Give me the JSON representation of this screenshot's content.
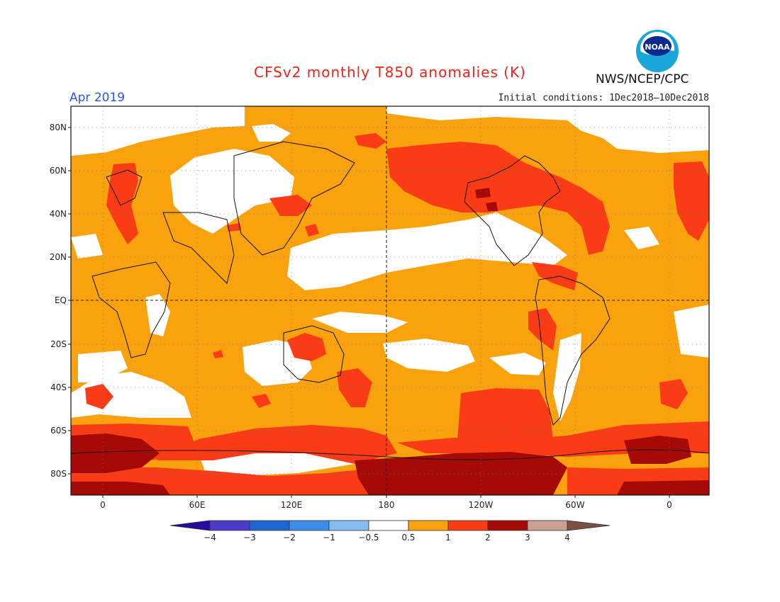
{
  "title": "CFSv2 monthly T850 anomalies (K)",
  "valid_month": "Apr 2019",
  "initial_conditions": "Initial conditions: 1Dec2018–10Dec2018",
  "organization": "NWS/NCEP/CPC",
  "logo_text": "NOAA",
  "lat_labels": [
    "80N",
    "60N",
    "40N",
    "20N",
    "EQ",
    "20S",
    "40S",
    "60S",
    "80S"
  ],
  "lon_labels": [
    "0",
    "60E",
    "120E",
    "180",
    "120W",
    "60W",
    "0"
  ],
  "legend": {
    "ticks": [
      "−4",
      "−3",
      "−2",
      "−1",
      "−0.5",
      "0.5",
      "1",
      "2",
      "3",
      "4"
    ],
    "colors": [
      "#2a0a9a",
      "#4a3cc8",
      "#1e66d0",
      "#3c8ce8",
      "#82bcf0",
      "#ffffff",
      "#f9a20e",
      "#fa3c16",
      "#a60a08",
      "#caa094",
      "#7a5040"
    ]
  },
  "palette": {
    "white": "#ffffff",
    "orange": "#f9a20e",
    "red": "#fa3c16",
    "darkred": "#a60a08",
    "maroon": "#8a0504"
  }
}
